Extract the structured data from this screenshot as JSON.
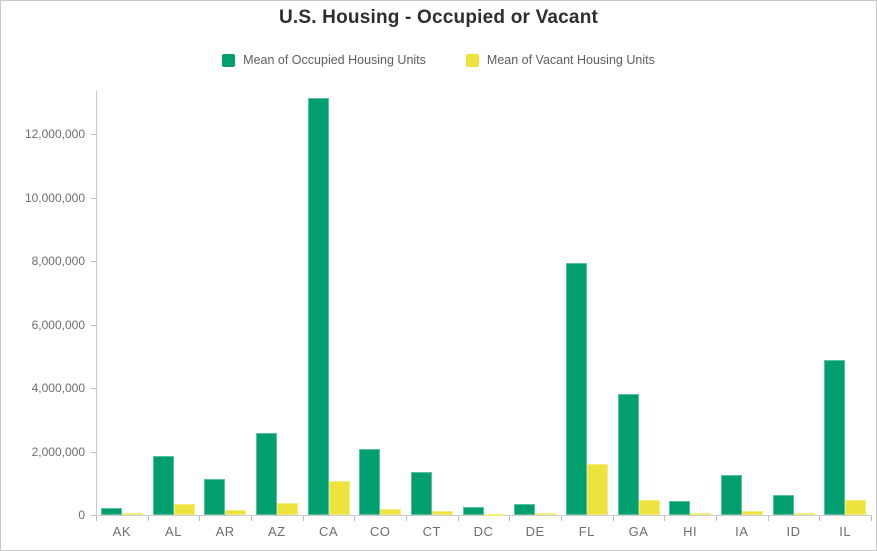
{
  "header": {
    "title": "U.S. Housing - Occupied or Vacant"
  },
  "legend": {
    "items": [
      {
        "label": "Mean of Occupied Housing Units",
        "color": "#019E70"
      },
      {
        "label": "Mean of Vacant Housing Units",
        "color": "#EDE33C"
      }
    ]
  },
  "chart_data": {
    "type": "bar",
    "title": "U.S. Housing - Occupied or Vacant",
    "categories": [
      "AK",
      "AL",
      "AR",
      "AZ",
      "CA",
      "CO",
      "CT",
      "DC",
      "DE",
      "FL",
      "GA",
      "HI",
      "IA",
      "ID",
      "IL"
    ],
    "series": [
      {
        "name": "Mean of Occupied Housing Units",
        "color": "#019E70",
        "values": [
          230000,
          1860000,
          1130000,
          2590000,
          13130000,
          2090000,
          1350000,
          250000,
          340000,
          7940000,
          3820000,
          440000,
          1250000,
          620000,
          4870000
        ]
      },
      {
        "name": "Mean of Vacant Housing Units",
        "color": "#EDE33C",
        "values": [
          50000,
          350000,
          160000,
          370000,
          1070000,
          180000,
          130000,
          30000,
          50000,
          1600000,
          460000,
          50000,
          130000,
          60000,
          460000
        ]
      }
    ],
    "xlabel": "",
    "ylabel": "",
    "yticks": [
      0,
      2000000,
      4000000,
      6000000,
      8000000,
      10000000,
      12000000
    ],
    "ylim": [
      0,
      13350000
    ],
    "grid": false,
    "legend_position": "top"
  }
}
